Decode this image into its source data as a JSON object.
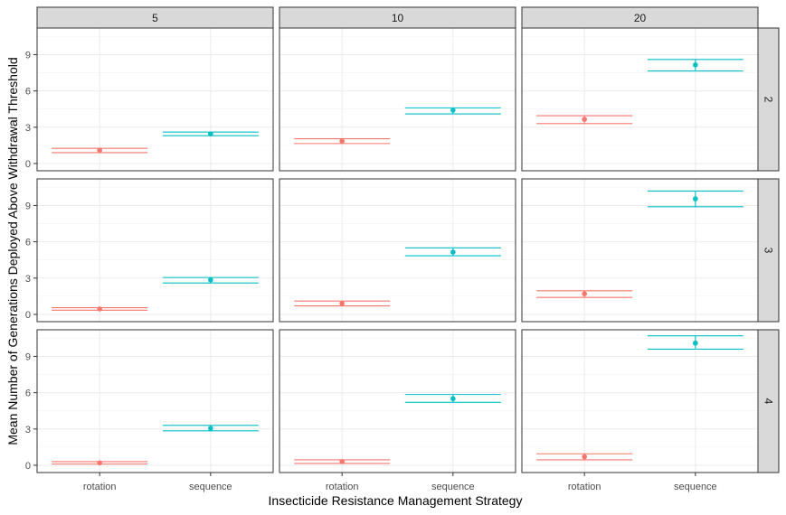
{
  "chart_data": {
    "type": "scatter",
    "xlabel": "Insecticide Resistance Management Strategy",
    "ylabel": "Mean Number of Generations Deployed Above Withdrawal Threshold",
    "categories": [
      "rotation",
      "sequence"
    ],
    "column_facets": [
      "5",
      "10",
      "20"
    ],
    "row_facets": [
      "2",
      "3",
      "4"
    ],
    "y_ticks": [
      0,
      3,
      6,
      9
    ],
    "ylim": [
      -0.6,
      11.2
    ],
    "grid": true,
    "legend": "none",
    "series_colors": {
      "rotation": "#F8766D",
      "sequence": "#00BFC4"
    },
    "panels": [
      {
        "row": "2",
        "col": "5",
        "points": [
          {
            "x": "rotation",
            "mean": 1.1,
            "lower": 0.9,
            "upper": 1.25
          },
          {
            "x": "sequence",
            "mean": 2.45,
            "lower": 2.3,
            "upper": 2.6
          }
        ]
      },
      {
        "row": "2",
        "col": "10",
        "points": [
          {
            "x": "rotation",
            "mean": 1.85,
            "lower": 1.65,
            "upper": 2.05
          },
          {
            "x": "sequence",
            "mean": 4.4,
            "lower": 4.1,
            "upper": 4.6
          }
        ]
      },
      {
        "row": "2",
        "col": "20",
        "points": [
          {
            "x": "rotation",
            "mean": 3.65,
            "lower": 3.3,
            "upper": 3.95
          },
          {
            "x": "sequence",
            "mean": 8.15,
            "lower": 7.65,
            "upper": 8.6
          }
        ]
      },
      {
        "row": "3",
        "col": "5",
        "points": [
          {
            "x": "rotation",
            "mean": 0.45,
            "lower": 0.35,
            "upper": 0.55
          },
          {
            "x": "sequence",
            "mean": 2.85,
            "lower": 2.6,
            "upper": 3.05
          }
        ]
      },
      {
        "row": "3",
        "col": "10",
        "points": [
          {
            "x": "rotation",
            "mean": 0.9,
            "lower": 0.7,
            "upper": 1.1
          },
          {
            "x": "sequence",
            "mean": 5.15,
            "lower": 4.85,
            "upper": 5.5
          }
        ]
      },
      {
        "row": "3",
        "col": "20",
        "points": [
          {
            "x": "rotation",
            "mean": 1.7,
            "lower": 1.4,
            "upper": 1.95
          },
          {
            "x": "sequence",
            "mean": 9.55,
            "lower": 8.9,
            "upper": 10.2
          }
        ]
      },
      {
        "row": "4",
        "col": "5",
        "points": [
          {
            "x": "rotation",
            "mean": 0.2,
            "lower": 0.1,
            "upper": 0.3
          },
          {
            "x": "sequence",
            "mean": 3.05,
            "lower": 2.85,
            "upper": 3.3
          }
        ]
      },
      {
        "row": "4",
        "col": "10",
        "points": [
          {
            "x": "rotation",
            "mean": 0.3,
            "lower": 0.15,
            "upper": 0.45
          },
          {
            "x": "sequence",
            "mean": 5.5,
            "lower": 5.2,
            "upper": 5.85
          }
        ]
      },
      {
        "row": "4",
        "col": "20",
        "points": [
          {
            "x": "rotation",
            "mean": 0.7,
            "lower": 0.45,
            "upper": 0.95
          },
          {
            "x": "sequence",
            "mean": 10.1,
            "lower": 9.6,
            "upper": 10.7
          }
        ]
      }
    ]
  }
}
